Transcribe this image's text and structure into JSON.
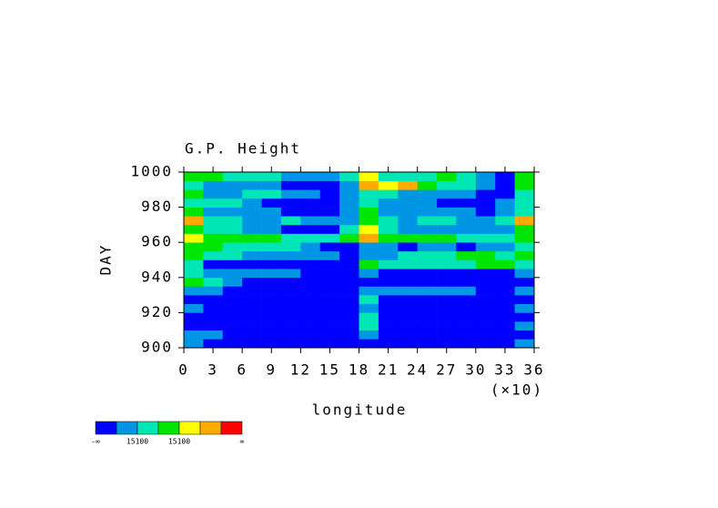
{
  "chart_data": {
    "type": "heatmap",
    "title": "G.P. Height",
    "xlabel": "longitude",
    "ylabel": "DAY",
    "x_multiplier": "(×10)",
    "xlim": [
      0,
      36
    ],
    "ylim": [
      900,
      1000
    ],
    "xticks": [
      0,
      3,
      6,
      9,
      12,
      15,
      18,
      21,
      24,
      27,
      30,
      33,
      36
    ],
    "yticks": [
      900,
      920,
      940,
      960,
      980,
      1000
    ],
    "x_bins": [
      0,
      2,
      4,
      6,
      8,
      10,
      12,
      14,
      16,
      18,
      20,
      22,
      24,
      26,
      28,
      30,
      32,
      34,
      36
    ],
    "y_bins": [
      900,
      905,
      910,
      915,
      920,
      925,
      930,
      935,
      940,
      945,
      950,
      955,
      960,
      965,
      970,
      975,
      980,
      985,
      990,
      995,
      1000
    ],
    "z": [
      [
        1,
        0,
        0,
        0,
        0,
        0,
        0,
        0,
        0,
        0,
        0,
        0,
        0,
        0,
        0,
        0,
        0,
        1
      ],
      [
        1,
        1,
        0,
        0,
        0,
        0,
        0,
        0,
        0,
        1,
        0,
        0,
        0,
        0,
        0,
        0,
        0,
        0
      ],
      [
        0,
        0,
        0,
        0,
        0,
        0,
        0,
        0,
        0,
        2,
        0,
        0,
        0,
        0,
        0,
        0,
        0,
        1
      ],
      [
        0,
        0,
        0,
        0,
        0,
        0,
        0,
        0,
        0,
        2,
        0,
        0,
        0,
        0,
        0,
        0,
        0,
        0
      ],
      [
        1,
        0,
        0,
        0,
        0,
        0,
        0,
        0,
        0,
        1,
        0,
        0,
        0,
        0,
        0,
        0,
        0,
        1
      ],
      [
        0,
        0,
        0,
        0,
        0,
        0,
        0,
        0,
        0,
        2,
        0,
        0,
        0,
        0,
        0,
        0,
        0,
        0
      ],
      [
        1,
        1,
        0,
        0,
        0,
        0,
        0,
        0,
        0,
        1,
        1,
        1,
        1,
        1,
        1,
        0,
        0,
        1
      ],
      [
        3,
        2,
        1,
        0,
        0,
        0,
        0,
        0,
        0,
        0,
        0,
        0,
        0,
        0,
        0,
        0,
        0,
        0
      ],
      [
        2,
        1,
        1,
        1,
        1,
        1,
        0,
        0,
        0,
        1,
        0,
        0,
        0,
        0,
        0,
        0,
        0,
        1
      ],
      [
        2,
        0,
        0,
        0,
        0,
        0,
        0,
        0,
        0,
        3,
        2,
        2,
        2,
        2,
        2,
        3,
        3,
        2
      ],
      [
        3,
        2,
        2,
        1,
        1,
        1,
        1,
        1,
        0,
        1,
        1,
        2,
        2,
        2,
        3,
        3,
        2,
        3
      ],
      [
        3,
        3,
        2,
        2,
        2,
        2,
        1,
        0,
        0,
        1,
        1,
        0,
        1,
        1,
        0,
        1,
        1,
        2
      ],
      [
        4,
        3,
        3,
        3,
        3,
        2,
        2,
        2,
        3,
        5,
        3,
        3,
        3,
        3,
        2,
        2,
        2,
        3
      ],
      [
        3,
        2,
        2,
        1,
        1,
        0,
        0,
        0,
        2,
        4,
        2,
        1,
        1,
        1,
        1,
        1,
        1,
        3
      ],
      [
        5,
        2,
        2,
        1,
        1,
        2,
        1,
        1,
        1,
        3,
        2,
        1,
        2,
        2,
        1,
        1,
        2,
        5
      ],
      [
        3,
        1,
        1,
        1,
        1,
        0,
        0,
        0,
        1,
        3,
        1,
        1,
        1,
        1,
        1,
        0,
        1,
        2
      ],
      [
        2,
        2,
        2,
        1,
        0,
        0,
        0,
        0,
        1,
        2,
        1,
        1,
        1,
        0,
        0,
        0,
        1,
        2
      ],
      [
        3,
        1,
        1,
        2,
        2,
        1,
        1,
        0,
        1,
        2,
        2,
        1,
        1,
        1,
        1,
        0,
        0,
        2
      ],
      [
        2,
        1,
        1,
        1,
        1,
        0,
        0,
        0,
        1,
        5,
        4,
        5,
        3,
        2,
        2,
        1,
        0,
        3
      ],
      [
        3,
        3,
        2,
        2,
        2,
        1,
        1,
        1,
        2,
        4,
        2,
        2,
        2,
        3,
        2,
        1,
        0,
        3
      ]
    ],
    "colors": [
      "#0000ff",
      "#0096e6",
      "#00e6b4",
      "#00e600",
      "#ffff00",
      "#ffaa00",
      "#ff0000"
    ],
    "colorbar_labels": [
      "-∞",
      "15100",
      "15100",
      "∞"
    ]
  }
}
